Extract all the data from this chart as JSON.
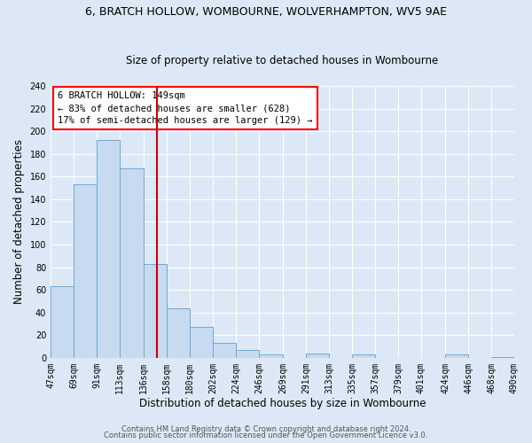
{
  "title": "6, BRATCH HOLLOW, WOMBOURNE, WOLVERHAMPTON, WV5 9AE",
  "subtitle": "Size of property relative to detached houses in Wombourne",
  "xlabel": "Distribution of detached houses by size in Wombourne",
  "ylabel": "Number of detached properties",
  "bin_edges": [
    47,
    69,
    91,
    113,
    136,
    158,
    180,
    202,
    224,
    246,
    269,
    291,
    313,
    335,
    357,
    379,
    401,
    424,
    446,
    468,
    490
  ],
  "bar_heights": [
    63,
    153,
    192,
    167,
    83,
    44,
    27,
    13,
    7,
    3,
    0,
    4,
    0,
    3,
    0,
    0,
    0,
    3,
    0,
    1
  ],
  "bar_color": "#c8daf0",
  "bar_edge_color": "#6aaad4",
  "vline_x": 149,
  "vline_color": "#cc0000",
  "ylim": [
    0,
    240
  ],
  "yticks": [
    0,
    20,
    40,
    60,
    80,
    100,
    120,
    140,
    160,
    180,
    200,
    220,
    240
  ],
  "xtick_labels": [
    "47sqm",
    "69sqm",
    "91sqm",
    "113sqm",
    "136sqm",
    "158sqm",
    "180sqm",
    "202sqm",
    "224sqm",
    "246sqm",
    "269sqm",
    "291sqm",
    "313sqm",
    "335sqm",
    "357sqm",
    "379sqm",
    "401sqm",
    "424sqm",
    "446sqm",
    "468sqm",
    "490sqm"
  ],
  "annotation_title": "6 BRATCH HOLLOW: 149sqm",
  "annotation_line1": "← 83% of detached houses are smaller (628)",
  "annotation_line2": "17% of semi-detached houses are larger (129) →",
  "footer_line1": "Contains HM Land Registry data © Crown copyright and database right 2024.",
  "footer_line2": "Contains public sector information licensed under the Open Government Licence v3.0.",
  "bg_color": "#dce8f5",
  "plot_bg_color": "#dce8f5",
  "grid_color": "#ffffff",
  "title_fontsize": 9,
  "subtitle_fontsize": 8.5,
  "axis_label_fontsize": 8.5,
  "tick_fontsize": 7,
  "footer_fontsize": 6,
  "annotation_fontsize": 7.5
}
